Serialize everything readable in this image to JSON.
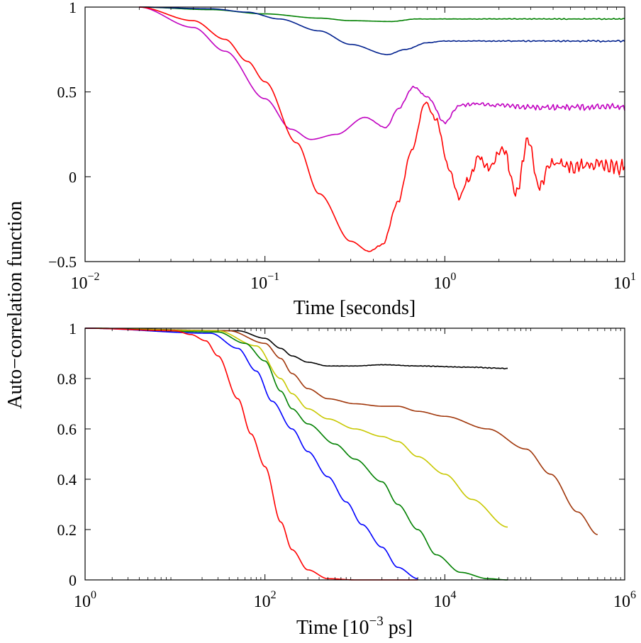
{
  "ylabel_shared": "Auto−correlation function",
  "chart_data": [
    {
      "type": "line",
      "xlabel": "Time [seconds]",
      "xscale": "log",
      "xlim": [
        0.01,
        10
      ],
      "ylim": [
        -0.5,
        1
      ],
      "xticks": [
        0.01,
        0.1,
        1,
        10
      ],
      "xtick_labels": [
        {
          "base": "10",
          "exp": "−2"
        },
        {
          "base": "10",
          "exp": "−1"
        },
        {
          "base": "10",
          "exp": "0"
        },
        {
          "base": "10",
          "exp": "1"
        }
      ],
      "yticks": [
        -0.5,
        0,
        0.5,
        1
      ],
      "ytick_labels": [
        "−0.5",
        "0",
        "0.5",
        "1"
      ],
      "grid": false,
      "series": [
        {
          "color": "#008000",
          "noise": 0.004,
          "points": [
            [
              0.02,
              1
            ],
            [
              0.05,
              0.985
            ],
            [
              0.1,
              0.96
            ],
            [
              0.2,
              0.935
            ],
            [
              0.3,
              0.92
            ],
            [
              0.5,
              0.915
            ],
            [
              0.7,
              0.93
            ],
            [
              1,
              0.93
            ],
            [
              2,
              0.93
            ],
            [
              5,
              0.93
            ],
            [
              10,
              0.93
            ]
          ]
        },
        {
          "color": "#00208e",
          "noise": 0.006,
          "points": [
            [
              0.02,
              1
            ],
            [
              0.05,
              0.99
            ],
            [
              0.08,
              0.97
            ],
            [
              0.12,
              0.93
            ],
            [
              0.2,
              0.86
            ],
            [
              0.3,
              0.78
            ],
            [
              0.48,
              0.72
            ],
            [
              0.6,
              0.75
            ],
            [
              0.8,
              0.79
            ],
            [
              1,
              0.8
            ],
            [
              2,
              0.8
            ],
            [
              5,
              0.8
            ],
            [
              10,
              0.8
            ]
          ]
        },
        {
          "color": "#c000c0",
          "noise": 0.025,
          "points": [
            [
              0.02,
              1
            ],
            [
              0.04,
              0.88
            ],
            [
              0.06,
              0.74
            ],
            [
              0.1,
              0.46
            ],
            [
              0.14,
              0.28
            ],
            [
              0.18,
              0.22
            ],
            [
              0.25,
              0.25
            ],
            [
              0.36,
              0.35
            ],
            [
              0.47,
              0.29
            ],
            [
              0.55,
              0.4
            ],
            [
              0.67,
              0.53
            ],
            [
              0.8,
              0.47
            ],
            [
              1.0,
              0.32
            ],
            [
              1.2,
              0.42
            ],
            [
              1.5,
              0.43
            ],
            [
              2,
              0.42
            ],
            [
              3,
              0.41
            ],
            [
              5,
              0.41
            ],
            [
              10,
              0.41
            ]
          ]
        },
        {
          "color": "#ff0000",
          "noise": 0.055,
          "points": [
            [
              0.02,
              1
            ],
            [
              0.04,
              0.92
            ],
            [
              0.06,
              0.81
            ],
            [
              0.08,
              0.68
            ],
            [
              0.1,
              0.56
            ],
            [
              0.15,
              0.2
            ],
            [
              0.2,
              -0.1
            ],
            [
              0.3,
              -0.38
            ],
            [
              0.38,
              -0.44
            ],
            [
              0.45,
              -0.4
            ],
            [
              0.55,
              -0.15
            ],
            [
              0.65,
              0.15
            ],
            [
              0.78,
              0.44
            ],
            [
              0.9,
              0.33
            ],
            [
              1.05,
              0.05
            ],
            [
              1.2,
              -0.12
            ],
            [
              1.35,
              -0.02
            ],
            [
              1.55,
              0.12
            ],
            [
              1.75,
              0.05
            ],
            [
              2.1,
              0.17
            ],
            [
              2.5,
              -0.1
            ],
            [
              2.9,
              0.22
            ],
            [
              3.3,
              -0.05
            ],
            [
              4,
              0.08
            ],
            [
              5,
              0.06
            ],
            [
              7,
              0.08
            ],
            [
              10,
              0.06
            ]
          ]
        }
      ]
    },
    {
      "type": "line",
      "xlabel": {
        "pre": "Time [10",
        "exp": "−3",
        "post": " ps]"
      },
      "xscale": "log",
      "xlim": [
        1,
        1000000
      ],
      "ylim": [
        0,
        1
      ],
      "xticks": [
        1,
        100,
        10000,
        1000000
      ],
      "xtick_labels": [
        {
          "base": "10",
          "exp": "0"
        },
        {
          "base": "10",
          "exp": "2"
        },
        {
          "base": "10",
          "exp": "4"
        },
        {
          "base": "10",
          "exp": "6"
        }
      ],
      "yticks": [
        0,
        0.2,
        0.4,
        0.6,
        0.8,
        1
      ],
      "ytick_labels": [
        "0",
        "0.2",
        "0.4",
        "0.6",
        "0.8",
        "1"
      ],
      "grid": false,
      "series": [
        {
          "color": "#000000",
          "noise": 0.002,
          "points": [
            [
              1,
              1
            ],
            [
              50,
              0.99
            ],
            [
              100,
              0.96
            ],
            [
              150,
              0.92
            ],
            [
              200,
              0.89
            ],
            [
              300,
              0.865
            ],
            [
              500,
              0.85
            ],
            [
              1000,
              0.85
            ],
            [
              2000,
              0.855
            ],
            [
              5000,
              0.85
            ],
            [
              20000,
              0.845
            ],
            [
              50000,
              0.84
            ]
          ]
        },
        {
          "color": "#a0360a",
          "noise": 0.0,
          "points": [
            [
              1,
              1
            ],
            [
              40,
              0.99
            ],
            [
              100,
              0.94
            ],
            [
              150,
              0.88
            ],
            [
              200,
              0.82
            ],
            [
              300,
              0.76
            ],
            [
              500,
              0.72
            ],
            [
              1000,
              0.7
            ],
            [
              2000,
              0.69
            ],
            [
              3000,
              0.69
            ],
            [
              5000,
              0.67
            ],
            [
              10000,
              0.65
            ],
            [
              30000,
              0.6
            ],
            [
              80000,
              0.52
            ],
            [
              150000,
              0.42
            ],
            [
              300000,
              0.27
            ],
            [
              500000,
              0.18
            ]
          ]
        },
        {
          "color": "#c8c800",
          "noise": 0.0,
          "points": [
            [
              1,
              1
            ],
            [
              30,
              0.99
            ],
            [
              80,
              0.93
            ],
            [
              150,
              0.8
            ],
            [
              200,
              0.74
            ],
            [
              300,
              0.68
            ],
            [
              500,
              0.64
            ],
            [
              1000,
              0.6
            ],
            [
              2000,
              0.57
            ],
            [
              3000,
              0.55
            ],
            [
              5000,
              0.49
            ],
            [
              10000,
              0.42
            ],
            [
              20000,
              0.32
            ],
            [
              50000,
              0.21
            ]
          ]
        },
        {
          "color": "#008000",
          "noise": 0.0,
          "points": [
            [
              1,
              1
            ],
            [
              30,
              0.985
            ],
            [
              60,
              0.94
            ],
            [
              100,
              0.87
            ],
            [
              150,
              0.75
            ],
            [
              200,
              0.68
            ],
            [
              300,
              0.62
            ],
            [
              600,
              0.54
            ],
            [
              1000,
              0.48
            ],
            [
              2000,
              0.39
            ],
            [
              3000,
              0.3
            ],
            [
              5000,
              0.2
            ],
            [
              8000,
              0.1
            ],
            [
              15000,
              0.03
            ],
            [
              30000,
              0.005
            ],
            [
              50000,
              0
            ]
          ]
        },
        {
          "color": "#0000ff",
          "noise": 0.0,
          "points": [
            [
              1,
              1
            ],
            [
              25,
              0.98
            ],
            [
              50,
              0.92
            ],
            [
              80,
              0.83
            ],
            [
              120,
              0.71
            ],
            [
              200,
              0.6
            ],
            [
              300,
              0.51
            ],
            [
              500,
              0.41
            ],
            [
              800,
              0.31
            ],
            [
              1200,
              0.22
            ],
            [
              2000,
              0.13
            ],
            [
              3000,
              0.05
            ],
            [
              5000,
              0.005
            ]
          ]
        },
        {
          "color": "#ff0000",
          "noise": 0.0,
          "points": [
            [
              1,
              1
            ],
            [
              10,
              0.99
            ],
            [
              15,
              0.975
            ],
            [
              22,
              0.95
            ],
            [
              30,
              0.89
            ],
            [
              50,
              0.72
            ],
            [
              70,
              0.58
            ],
            [
              100,
              0.45
            ],
            [
              150,
              0.23
            ],
            [
              200,
              0.12
            ],
            [
              300,
              0.04
            ],
            [
              500,
              0.005
            ],
            [
              1000,
              0
            ],
            [
              5000,
              0
            ]
          ]
        }
      ]
    }
  ]
}
